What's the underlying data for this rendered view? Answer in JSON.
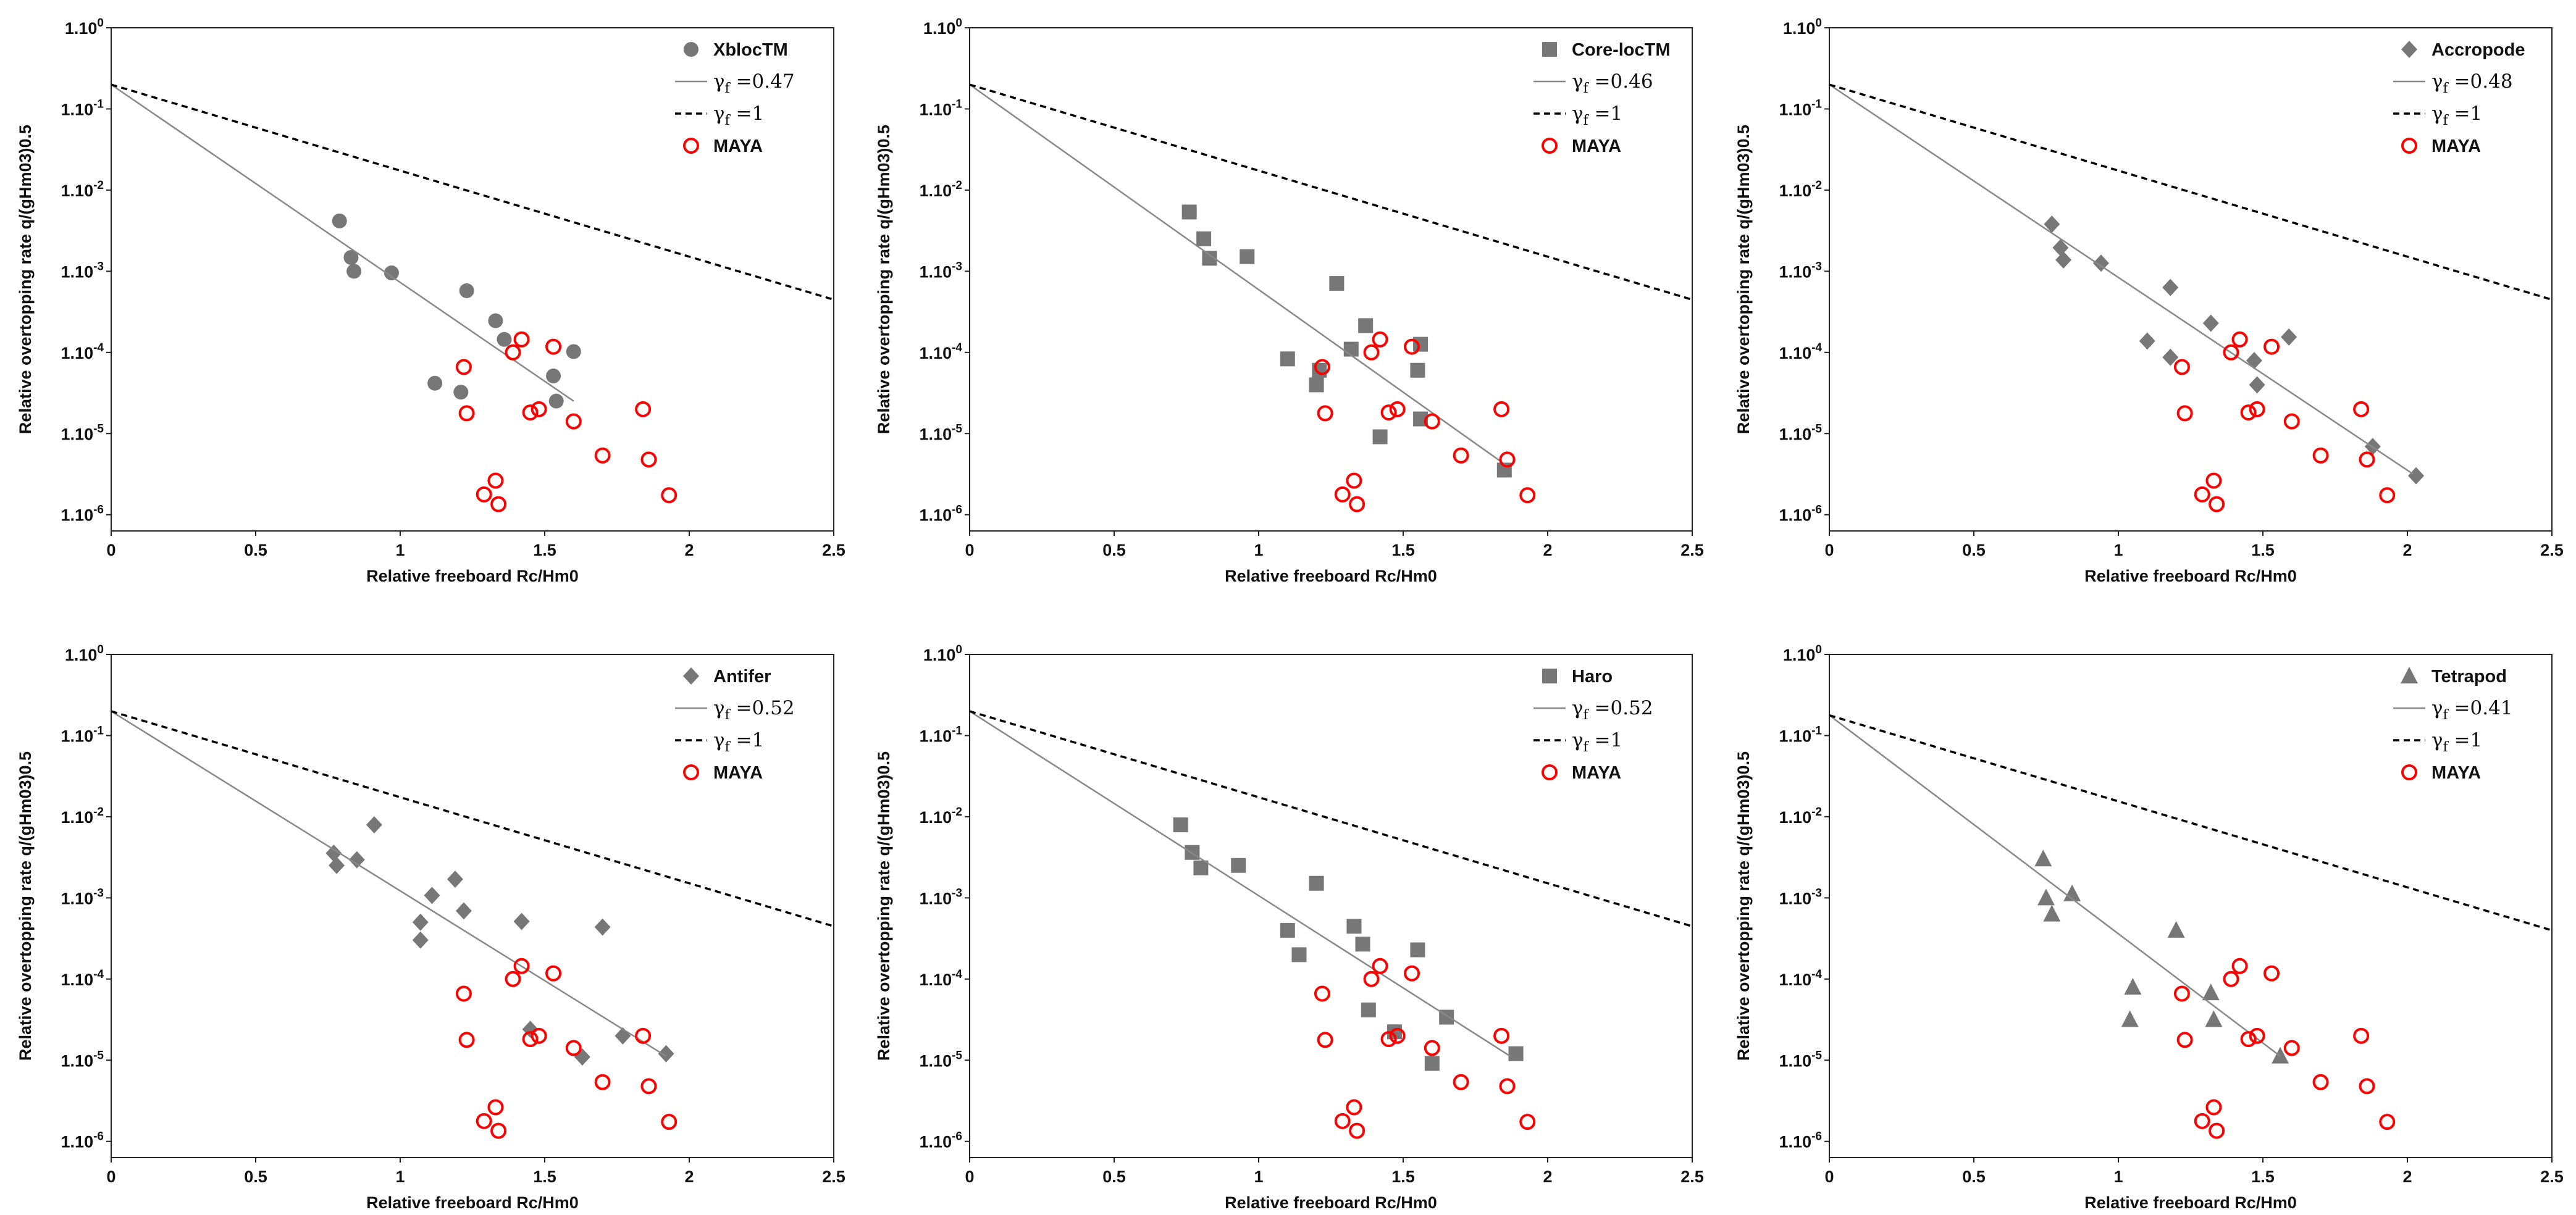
{
  "chart_data": [
    {
      "type": "scatter",
      "title": "",
      "xlabel": "Relative freeboard Rc/Hm0",
      "ylabel": "Relative overtopping rate q/(gHm03)0.5",
      "xlim": [
        0,
        2.5
      ],
      "ylim_exp": [
        -6.2,
        0
      ],
      "yscale": "log",
      "x_ticks": [
        "0",
        "0.5",
        "1",
        "1.5",
        "2",
        "2.5"
      ],
      "y_ticks": [
        {
          "base": "1.10",
          "exp": "0",
          "e": 0
        },
        {
          "base": "1.10",
          "exp": "-1",
          "e": -1
        },
        {
          "base": "1.10",
          "exp": "-2",
          "e": -2
        },
        {
          "base": "1.10",
          "exp": "-3",
          "e": -3
        },
        {
          "base": "1.10",
          "exp": "-4",
          "e": -4
        },
        {
          "base": "1.10",
          "exp": "-5",
          "e": -5
        },
        {
          "base": "1.10",
          "exp": "-6",
          "e": -6
        }
      ],
      "legend_position": "top-right",
      "grid": false,
      "series": [
        {
          "name": "XblocTM",
          "kind": "points",
          "marker": "circle",
          "color": "#777777",
          "x": [
            0.79,
            0.83,
            0.84,
            0.97,
            1.12,
            1.21,
            1.23,
            1.33,
            1.36,
            1.53,
            1.54,
            1.6
          ],
          "y_exp": [
            -2.38,
            -2.83,
            -3.0,
            -3.02,
            -4.38,
            -4.49,
            -3.24,
            -3.61,
            -3.84,
            -4.29,
            -4.6,
            -3.99
          ]
        },
        {
          "name": "γf =0.47",
          "label_sym": "γ",
          "label_sub": "f",
          "label_rest": " =0.47",
          "kind": "line",
          "style": "solid",
          "color": "#888888",
          "x": [
            0,
            1.6
          ],
          "y_exp": [
            -0.7,
            -4.6
          ]
        },
        {
          "name": "γf =1",
          "label_sym": "γ",
          "label_sub": "f",
          "label_rest": " =1",
          "kind": "line",
          "style": "dashed",
          "color": "#000000",
          "x": [
            0,
            2.5
          ],
          "y_exp": [
            -0.7,
            -3.35
          ]
        },
        {
          "name": "MAYA",
          "kind": "points",
          "marker": "open-circle",
          "color": "#ff0000",
          "x": [
            1.22,
            1.23,
            1.29,
            1.33,
            1.34,
            1.39,
            1.42,
            1.45,
            1.48,
            1.53,
            1.6,
            1.7,
            1.84,
            1.86,
            1.93
          ],
          "y_exp": [
            -4.18,
            -4.75,
            -5.75,
            -5.58,
            -5.87,
            -4.0,
            -3.84,
            -4.74,
            -4.7,
            -3.93,
            -4.85,
            -5.27,
            -4.7,
            -5.32,
            -5.76
          ]
        }
      ]
    },
    {
      "type": "scatter",
      "title": "",
      "xlabel": "Relative freeboard Rc/Hm0",
      "ylabel": "Relative overtopping rate q/(gHm03)0.5",
      "xlim": [
        0,
        2.5
      ],
      "ylim_exp": [
        -6.2,
        0
      ],
      "yscale": "log",
      "x_ticks": [
        "0",
        "0.5",
        "1",
        "1.5",
        "2",
        "2.5"
      ],
      "y_ticks": [
        {
          "base": "1.10",
          "exp": "0",
          "e": 0
        },
        {
          "base": "1.10",
          "exp": "-1",
          "e": -1
        },
        {
          "base": "1.10",
          "exp": "-2",
          "e": -2
        },
        {
          "base": "1.10",
          "exp": "-3",
          "e": -3
        },
        {
          "base": "1.10",
          "exp": "-4",
          "e": -4
        },
        {
          "base": "1.10",
          "exp": "-5",
          "e": -5
        },
        {
          "base": "1.10",
          "exp": "-6",
          "e": -6
        }
      ],
      "legend_position": "top-right",
      "grid": false,
      "series": [
        {
          "name": "Core-locTM",
          "kind": "points",
          "marker": "square",
          "color": "#777777",
          "x": [
            0.76,
            0.81,
            0.83,
            0.96,
            1.1,
            1.2,
            1.21,
            1.27,
            1.32,
            1.37,
            1.42,
            1.55,
            1.56,
            1.56,
            1.85
          ],
          "y_exp": [
            -2.27,
            -2.6,
            -2.84,
            -2.82,
            -4.08,
            -4.4,
            -4.22,
            -3.15,
            -3.96,
            -3.67,
            -5.04,
            -4.22,
            -3.9,
            -4.82,
            -5.45
          ]
        },
        {
          "name": "γf =0.46",
          "label_sym": "γ",
          "label_sub": "f",
          "label_rest": " =0.46",
          "kind": "line",
          "style": "solid",
          "color": "#888888",
          "x": [
            0,
            1.86
          ],
          "y_exp": [
            -0.7,
            -5.4
          ]
        },
        {
          "name": "γf =1",
          "label_sym": "γ",
          "label_sub": "f",
          "label_rest": " =1",
          "kind": "line",
          "style": "dashed",
          "color": "#000000",
          "x": [
            0,
            2.5
          ],
          "y_exp": [
            -0.7,
            -3.35
          ]
        },
        {
          "name": "MAYA",
          "kind": "points",
          "marker": "open-circle",
          "color": "#ff0000",
          "x": [
            1.22,
            1.23,
            1.29,
            1.33,
            1.34,
            1.39,
            1.42,
            1.45,
            1.48,
            1.53,
            1.6,
            1.7,
            1.84,
            1.86,
            1.93
          ],
          "y_exp": [
            -4.18,
            -4.75,
            -5.75,
            -5.58,
            -5.87,
            -4.0,
            -3.84,
            -4.74,
            -4.7,
            -3.93,
            -4.85,
            -5.27,
            -4.7,
            -5.32,
            -5.76
          ]
        }
      ]
    },
    {
      "type": "scatter",
      "title": "",
      "xlabel": "Relative freeboard Rc/Hm0",
      "ylabel": "Relative overtopping rate q/(gHm03)0.5",
      "xlim": [
        0,
        2.5
      ],
      "ylim_exp": [
        -6.2,
        0
      ],
      "yscale": "log",
      "x_ticks": [
        "0",
        "0.5",
        "1",
        "1.5",
        "2",
        "2.5"
      ],
      "y_ticks": [
        {
          "base": "1.10",
          "exp": "0",
          "e": 0
        },
        {
          "base": "1.10",
          "exp": "-1",
          "e": -1
        },
        {
          "base": "1.10",
          "exp": "-2",
          "e": -2
        },
        {
          "base": "1.10",
          "exp": "-3",
          "e": -3
        },
        {
          "base": "1.10",
          "exp": "-4",
          "e": -4
        },
        {
          "base": "1.10",
          "exp": "-5",
          "e": -5
        },
        {
          "base": "1.10",
          "exp": "-6",
          "e": -6
        }
      ],
      "legend_position": "top-right",
      "grid": false,
      "series": [
        {
          "name": "Accropode",
          "kind": "points",
          "marker": "diamond",
          "color": "#777777",
          "x": [
            0.77,
            0.8,
            0.81,
            0.94,
            1.1,
            1.18,
            1.18,
            1.32,
            1.47,
            1.48,
            1.59,
            1.88,
            2.03
          ],
          "y_exp": [
            -2.42,
            -2.71,
            -2.86,
            -2.9,
            -3.86,
            -3.2,
            -4.06,
            -3.64,
            -4.1,
            -4.4,
            -3.81,
            -5.16,
            -5.52
          ]
        },
        {
          "name": "γf =0.48",
          "label_sym": "γ",
          "label_sub": "f",
          "label_rest": " =0.48",
          "kind": "line",
          "style": "solid",
          "color": "#888888",
          "x": [
            0,
            2.02
          ],
          "y_exp": [
            -0.7,
            -5.5
          ]
        },
        {
          "name": "γf =1",
          "label_sym": "γ",
          "label_sub": "f",
          "label_rest": " =1",
          "kind": "line",
          "style": "dashed",
          "color": "#000000",
          "x": [
            0,
            2.5
          ],
          "y_exp": [
            -0.7,
            -3.35
          ]
        },
        {
          "name": "MAYA",
          "kind": "points",
          "marker": "open-circle",
          "color": "#ff0000",
          "x": [
            1.22,
            1.23,
            1.29,
            1.33,
            1.34,
            1.39,
            1.42,
            1.45,
            1.48,
            1.53,
            1.6,
            1.7,
            1.84,
            1.86,
            1.93
          ],
          "y_exp": [
            -4.18,
            -4.75,
            -5.75,
            -5.58,
            -5.87,
            -4.0,
            -3.84,
            -4.74,
            -4.7,
            -3.93,
            -4.85,
            -5.27,
            -4.7,
            -5.32,
            -5.76
          ]
        }
      ]
    },
    {
      "type": "scatter",
      "title": "",
      "xlabel": "Relative freeboard Rc/Hm0",
      "ylabel": "Relative overtopping rate q/(gHm03)0.5",
      "xlim": [
        0,
        2.5
      ],
      "ylim_exp": [
        -6.2,
        0
      ],
      "yscale": "log",
      "x_ticks": [
        "0",
        "0.5",
        "1",
        "1.5",
        "2",
        "2.5"
      ],
      "y_ticks": [
        {
          "base": "1.10",
          "exp": "0",
          "e": 0
        },
        {
          "base": "1.10",
          "exp": "-1",
          "e": -1
        },
        {
          "base": "1.10",
          "exp": "-2",
          "e": -2
        },
        {
          "base": "1.10",
          "exp": "-3",
          "e": -3
        },
        {
          "base": "1.10",
          "exp": "-4",
          "e": -4
        },
        {
          "base": "1.10",
          "exp": "-5",
          "e": -5
        },
        {
          "base": "1.10",
          "exp": "-6",
          "e": -6
        }
      ],
      "legend_position": "top-right",
      "grid": false,
      "series": [
        {
          "name": "Antifer",
          "kind": "points",
          "marker": "diamond",
          "color": "#777777",
          "x": [
            0.77,
            0.78,
            0.85,
            0.91,
            1.07,
            1.07,
            1.11,
            1.19,
            1.22,
            1.42,
            1.45,
            1.63,
            1.7,
            1.77,
            1.92
          ],
          "y_exp": [
            -2.45,
            -2.6,
            -2.53,
            -2.1,
            -3.3,
            -3.52,
            -2.97,
            -2.77,
            -3.16,
            -3.29,
            -4.62,
            -4.96,
            -3.36,
            -4.7,
            -4.92
          ]
        },
        {
          "name": "γf =0.52",
          "label_sym": "γ",
          "label_sub": "f",
          "label_rest": " =0.52",
          "kind": "line",
          "style": "solid",
          "color": "#888888",
          "x": [
            0,
            1.92
          ],
          "y_exp": [
            -0.7,
            -4.95
          ]
        },
        {
          "name": "γf =1",
          "label_sym": "γ",
          "label_sub": "f",
          "label_rest": " =1",
          "kind": "line",
          "style": "dashed",
          "color": "#000000",
          "x": [
            0,
            2.5
          ],
          "y_exp": [
            -0.7,
            -3.35
          ]
        },
        {
          "name": "MAYA",
          "kind": "points",
          "marker": "open-circle",
          "color": "#ff0000",
          "x": [
            1.22,
            1.23,
            1.29,
            1.33,
            1.34,
            1.39,
            1.42,
            1.45,
            1.48,
            1.53,
            1.6,
            1.7,
            1.84,
            1.86,
            1.93
          ],
          "y_exp": [
            -4.18,
            -4.75,
            -5.75,
            -5.58,
            -5.87,
            -4.0,
            -3.84,
            -4.74,
            -4.7,
            -3.93,
            -4.85,
            -5.27,
            -4.7,
            -5.32,
            -5.76
          ]
        }
      ]
    },
    {
      "type": "scatter",
      "title": "",
      "xlabel": "Relative freeboard Rc/Hm0",
      "ylabel": "Relative overtopping rate q/(gHm03)0.5",
      "xlim": [
        0,
        2.5
      ],
      "ylim_exp": [
        -6.2,
        0
      ],
      "yscale": "log",
      "x_ticks": [
        "0",
        "0.5",
        "1",
        "1.5",
        "2",
        "2.5"
      ],
      "y_ticks": [
        {
          "base": "1.10",
          "exp": "0",
          "e": 0
        },
        {
          "base": "1.10",
          "exp": "-1",
          "e": -1
        },
        {
          "base": "1.10",
          "exp": "-2",
          "e": -2
        },
        {
          "base": "1.10",
          "exp": "-3",
          "e": -3
        },
        {
          "base": "1.10",
          "exp": "-4",
          "e": -4
        },
        {
          "base": "1.10",
          "exp": "-5",
          "e": -5
        },
        {
          "base": "1.10",
          "exp": "-6",
          "e": -6
        }
      ],
      "legend_position": "top-right",
      "grid": false,
      "series": [
        {
          "name": "Haro",
          "kind": "points",
          "marker": "square",
          "color": "#777777",
          "x": [
            0.73,
            0.77,
            0.8,
            0.93,
            1.1,
            1.14,
            1.2,
            1.33,
            1.36,
            1.38,
            1.47,
            1.55,
            1.6,
            1.65,
            1.89
          ],
          "y_exp": [
            -2.1,
            -2.44,
            -2.63,
            -2.6,
            -3.4,
            -3.7,
            -2.82,
            -3.35,
            -3.57,
            -4.38,
            -4.65,
            -3.64,
            -5.04,
            -4.47,
            -4.92
          ]
        },
        {
          "name": "γf =0.52",
          "label_sym": "γ",
          "label_sub": "f",
          "label_rest": " =0.52",
          "kind": "line",
          "style": "solid",
          "color": "#888888",
          "x": [
            0,
            1.87
          ],
          "y_exp": [
            -0.7,
            -4.95
          ]
        },
        {
          "name": "γf =1",
          "label_sym": "γ",
          "label_sub": "f",
          "label_rest": " =1",
          "kind": "line",
          "style": "dashed",
          "color": "#000000",
          "x": [
            0,
            2.5
          ],
          "y_exp": [
            -0.7,
            -3.35
          ]
        },
        {
          "name": "MAYA",
          "kind": "points",
          "marker": "open-circle",
          "color": "#ff0000",
          "x": [
            1.22,
            1.23,
            1.29,
            1.33,
            1.34,
            1.39,
            1.42,
            1.45,
            1.48,
            1.53,
            1.6,
            1.7,
            1.84,
            1.86,
            1.93
          ],
          "y_exp": [
            -4.18,
            -4.75,
            -5.75,
            -5.58,
            -5.87,
            -4.0,
            -3.84,
            -4.74,
            -4.7,
            -3.93,
            -4.85,
            -5.27,
            -4.7,
            -5.32,
            -5.76
          ]
        }
      ]
    },
    {
      "type": "scatter",
      "title": "",
      "xlabel": "Relative freeboard Rc/Hm0",
      "ylabel": "Relative overtopping rate q/(gHm03)0.5",
      "xlim": [
        0,
        2.5
      ],
      "ylim_exp": [
        -6.2,
        0
      ],
      "yscale": "log",
      "x_ticks": [
        "0",
        "0.5",
        "1",
        "1.5",
        "2",
        "2.5"
      ],
      "y_ticks": [
        {
          "base": "1.10",
          "exp": "0",
          "e": 0
        },
        {
          "base": "1.10",
          "exp": "-1",
          "e": -1
        },
        {
          "base": "1.10",
          "exp": "-2",
          "e": -2
        },
        {
          "base": "1.10",
          "exp": "-3",
          "e": -3
        },
        {
          "base": "1.10",
          "exp": "-4",
          "e": -4
        },
        {
          "base": "1.10",
          "exp": "-5",
          "e": -5
        },
        {
          "base": "1.10",
          "exp": "-6",
          "e": -6
        }
      ],
      "legend_position": "top-right",
      "grid": false,
      "series": [
        {
          "name": "Tetrapod",
          "kind": "points",
          "marker": "triangle",
          "color": "#777777",
          "x": [
            0.74,
            0.75,
            0.77,
            0.84,
            1.04,
            1.05,
            1.2,
            1.32,
            1.33,
            1.56
          ],
          "y_exp": [
            -2.52,
            -3.0,
            -3.2,
            -2.95,
            -4.5,
            -4.1,
            -3.4,
            -4.17,
            -4.5,
            -4.95
          ]
        },
        {
          "name": "γf =0.41",
          "label_sym": "γ",
          "label_sub": "f",
          "label_rest": " =0.41",
          "kind": "line",
          "style": "solid",
          "color": "#888888",
          "x": [
            0,
            1.56
          ],
          "y_exp": [
            -0.75,
            -4.95
          ]
        },
        {
          "name": "γf =1",
          "label_sym": "γ",
          "label_sub": "f",
          "label_rest": " =1",
          "kind": "line",
          "style": "dashed",
          "color": "#000000",
          "x": [
            0,
            2.5
          ],
          "y_exp": [
            -0.75,
            -3.4
          ]
        },
        {
          "name": "MAYA",
          "kind": "points",
          "marker": "open-circle",
          "color": "#ff0000",
          "x": [
            1.22,
            1.23,
            1.29,
            1.33,
            1.34,
            1.39,
            1.42,
            1.45,
            1.48,
            1.53,
            1.6,
            1.7,
            1.84,
            1.86,
            1.93
          ],
          "y_exp": [
            -4.18,
            -4.75,
            -5.75,
            -5.58,
            -5.87,
            -4.0,
            -3.84,
            -4.74,
            -4.7,
            -3.93,
            -4.85,
            -5.27,
            -4.7,
            -5.32,
            -5.76
          ]
        }
      ]
    }
  ]
}
